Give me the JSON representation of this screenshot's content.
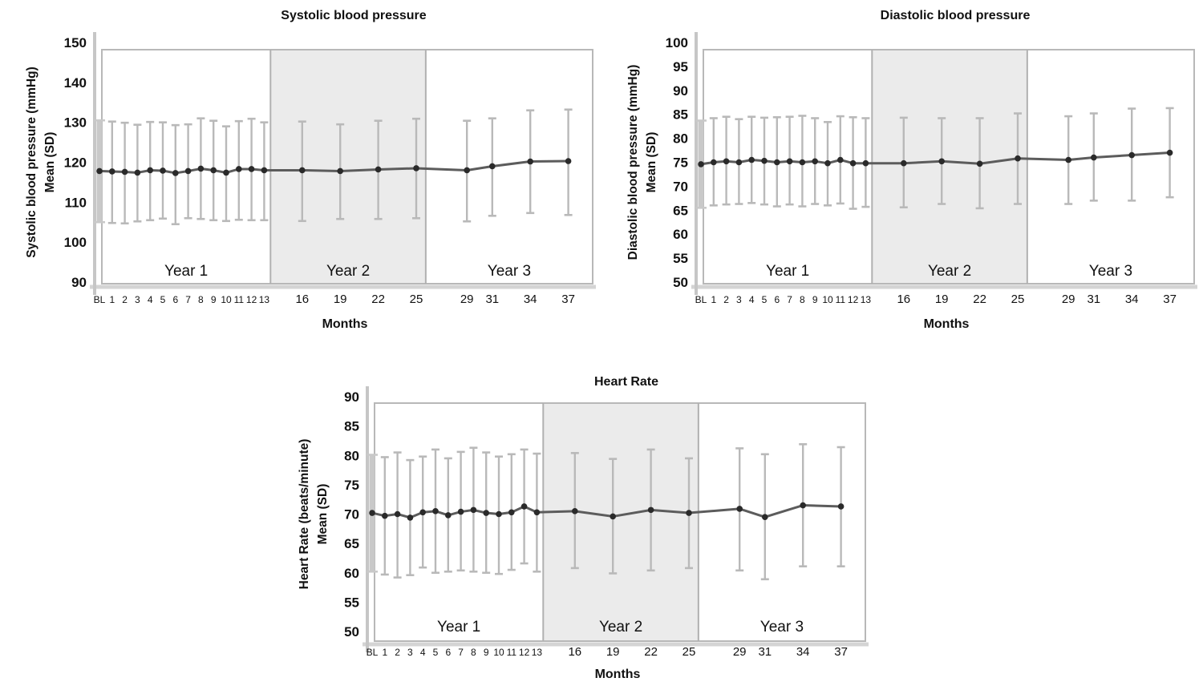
{
  "figure": {
    "background": "#ffffff",
    "xlabel": "Months"
  },
  "colors": {
    "frame_stroke": "#b8b8b8",
    "year2_fill": "#ebebeb",
    "divider_stroke": "#b0b0b0",
    "axis_line": "#c6c6c6",
    "bottom_shadow": "#d4d4d4",
    "error_bar": "#b9b9b9",
    "baseline_bar": "#c9c9c9",
    "mean_line": "#5c5c5c",
    "marker_fill": "#2a2a2a",
    "text": "#111111"
  },
  "chart_data": [
    {
      "type": "line",
      "title": "Systolic blood pressure",
      "ylabel_lines": [
        "Systolic blood pressure (mmHg)",
        "Mean (SD)"
      ],
      "xlabel": "Months",
      "ylim": [
        90,
        150
      ],
      "ytick_step": 10,
      "grid": false,
      "legend": "none",
      "x_categories": [
        "BL",
        "1",
        "2",
        "3",
        "4",
        "5",
        "6",
        "7",
        "8",
        "9",
        "10",
        "11",
        "12",
        "13",
        "16",
        "19",
        "22",
        "25",
        "29",
        "31",
        "34",
        "37"
      ],
      "x_month_values": [
        0,
        1,
        2,
        3,
        4,
        5,
        6,
        7,
        8,
        9,
        10,
        11,
        12,
        13,
        16,
        19,
        22,
        25,
        29,
        31,
        34,
        37
      ],
      "year_bands": [
        {
          "label": "Year 1",
          "start_month": -0.4,
          "end_month": 13.5,
          "shaded": false
        },
        {
          "label": "Year 2",
          "start_month": 13.5,
          "end_month": 25.75,
          "shaded": true
        },
        {
          "label": "Year 3",
          "start_month": 25.75,
          "end_month": 39.2,
          "shaded": false
        }
      ],
      "series": [
        {
          "name": "Mean",
          "values": [
            117.8,
            117.7,
            117.6,
            117.4,
            118.0,
            117.9,
            117.3,
            117.8,
            118.4,
            118.0,
            117.4,
            118.3,
            118.3,
            118.0,
            118.0,
            117.8,
            118.2,
            118.5,
            118.0,
            119.0,
            120.2,
            120.3
          ]
        },
        {
          "name": "Mean + SD",
          "values": [
            130.5,
            130.2,
            129.9,
            129.4,
            130.1,
            130.0,
            129.3,
            129.5,
            131.0,
            130.4,
            129.0,
            130.3,
            130.9,
            130.0,
            130.2,
            129.5,
            130.4,
            130.9,
            130.4,
            131.0,
            133.0,
            133.2
          ]
        },
        {
          "name": "Mean - SD",
          "values": [
            105.0,
            104.8,
            104.7,
            105.2,
            105.5,
            105.9,
            104.5,
            106.0,
            105.8,
            105.5,
            105.3,
            105.6,
            105.5,
            105.5,
            105.3,
            105.8,
            105.8,
            106.0,
            105.2,
            106.6,
            107.3,
            106.8
          ]
        }
      ]
    },
    {
      "type": "line",
      "title": "Diastolic blood pressure",
      "ylabel_lines": [
        "Diastolic blood pressure (mmHg)",
        "Mean (SD)"
      ],
      "xlabel": "Months",
      "ylim": [
        50,
        100
      ],
      "ytick_step": 5,
      "grid": false,
      "legend": "none",
      "x_categories": [
        "BL",
        "1",
        "2",
        "3",
        "4",
        "5",
        "6",
        "7",
        "8",
        "9",
        "10",
        "11",
        "12",
        "13",
        "16",
        "19",
        "22",
        "25",
        "29",
        "31",
        "34",
        "37"
      ],
      "x_month_values": [
        0,
        1,
        2,
        3,
        4,
        5,
        6,
        7,
        8,
        9,
        10,
        11,
        12,
        13,
        16,
        19,
        22,
        25,
        29,
        31,
        34,
        37
      ],
      "year_bands": [
        {
          "label": "Year 1",
          "start_month": -0.4,
          "end_month": 13.5,
          "shaded": false
        },
        {
          "label": "Year 2",
          "start_month": 13.5,
          "end_month": 25.75,
          "shaded": true
        },
        {
          "label": "Year 3",
          "start_month": 25.75,
          "end_month": 39.2,
          "shaded": false
        }
      ],
      "series": [
        {
          "name": "Mean",
          "values": [
            74.6,
            75.0,
            75.2,
            75.0,
            75.5,
            75.3,
            75.0,
            75.2,
            75.0,
            75.2,
            74.8,
            75.5,
            74.8,
            74.8,
            74.8,
            75.2,
            74.7,
            75.8,
            75.5,
            76.0,
            76.5,
            77.0
          ]
        },
        {
          "name": "Mean + SD",
          "values": [
            83.7,
            84.2,
            84.5,
            84.0,
            84.5,
            84.3,
            84.4,
            84.5,
            84.7,
            84.2,
            83.4,
            84.6,
            84.4,
            84.2,
            84.3,
            84.2,
            84.2,
            85.2,
            84.6,
            85.2,
            86.2,
            86.3
          ]
        },
        {
          "name": "Mean - SD",
          "values": [
            65.5,
            66.0,
            66.2,
            66.3,
            66.5,
            66.2,
            65.8,
            66.2,
            65.8,
            66.3,
            66.0,
            66.4,
            65.3,
            65.7,
            65.6,
            66.3,
            65.4,
            66.3,
            66.3,
            67.0,
            67.0,
            67.7
          ]
        }
      ]
    },
    {
      "type": "line",
      "title": "Heart Rate",
      "ylabel_lines": [
        "Heart Rate (beats/minute)",
        "Mean (SD)"
      ],
      "xlabel": "Months",
      "ylim": [
        50,
        90
      ],
      "ytick_step": 5,
      "grid": false,
      "legend": "none",
      "x_categories": [
        "BL",
        "1",
        "2",
        "3",
        "4",
        "5",
        "6",
        "7",
        "8",
        "9",
        "10",
        "11",
        "12",
        "13",
        "16",
        "19",
        "22",
        "25",
        "29",
        "31",
        "34",
        "37"
      ],
      "x_month_values": [
        0,
        1,
        2,
        3,
        4,
        5,
        6,
        7,
        8,
        9,
        10,
        11,
        12,
        13,
        16,
        19,
        22,
        25,
        29,
        31,
        34,
        37
      ],
      "year_bands": [
        {
          "label": "Year 1",
          "start_month": -0.4,
          "end_month": 13.5,
          "shaded": false
        },
        {
          "label": "Year 2",
          "start_month": 13.5,
          "end_month": 25.75,
          "shaded": true
        },
        {
          "label": "Year 3",
          "start_month": 25.75,
          "end_month": 39.2,
          "shaded": false
        }
      ],
      "series": [
        {
          "name": "Mean",
          "values": [
            70.2,
            69.7,
            70.0,
            69.4,
            70.3,
            70.5,
            69.8,
            70.4,
            70.7,
            70.2,
            70.0,
            70.3,
            71.3,
            70.3,
            70.5,
            69.6,
            70.7,
            70.2,
            70.9,
            69.5,
            71.5,
            71.3
          ]
        },
        {
          "name": "Mean + SD",
          "values": [
            80.1,
            79.7,
            80.5,
            79.2,
            79.8,
            81.0,
            79.5,
            80.6,
            81.3,
            80.5,
            79.8,
            80.2,
            81.0,
            80.3,
            80.4,
            79.4,
            81.0,
            79.5,
            81.2,
            80.2,
            81.9,
            81.4
          ]
        },
        {
          "name": "Mean - SD",
          "values": [
            60.2,
            59.7,
            59.2,
            59.6,
            60.9,
            60.0,
            60.2,
            60.4,
            60.2,
            60.0,
            59.8,
            60.5,
            61.6,
            60.2,
            60.8,
            59.9,
            60.4,
            60.8,
            60.4,
            58.9,
            61.1,
            61.1
          ]
        }
      ]
    }
  ]
}
